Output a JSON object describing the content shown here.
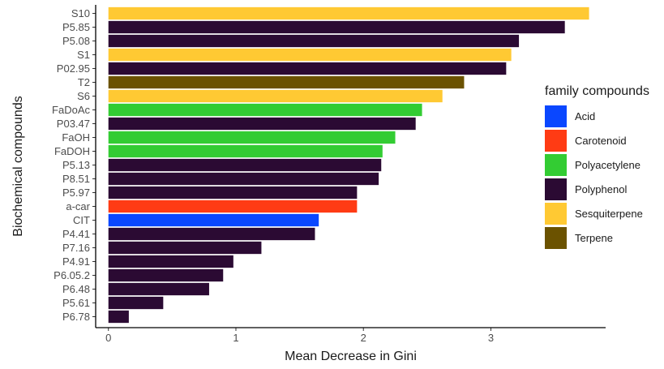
{
  "chart_data": {
    "type": "bar",
    "orientation": "horizontal",
    "xlabel": "Mean Decrease in Gini",
    "ylabel": "Biochemical compounds",
    "xlim": [
      -0.1,
      3.9
    ],
    "xticks": [
      0,
      1,
      2,
      3
    ],
    "grid": false,
    "legend": {
      "title": "family compounds",
      "placement": "right",
      "entries": [
        {
          "name": "Acid",
          "color": "#0a47ff"
        },
        {
          "name": "Carotenoid",
          "color": "#ff3b14"
        },
        {
          "name": "Polyacetylene",
          "color": "#33cc33"
        },
        {
          "name": "Polyphenol",
          "color": "#2b0a33"
        },
        {
          "name": "Sesquiterpene",
          "color": "#ffc933"
        },
        {
          "name": "Terpene",
          "color": "#6b5200"
        }
      ]
    },
    "bars": [
      {
        "label": "S10",
        "value": 3.77,
        "family": "Sesquiterpene"
      },
      {
        "label": "P5.85",
        "value": 3.58,
        "family": "Polyphenol"
      },
      {
        "label": "P5.08",
        "value": 3.22,
        "family": "Polyphenol"
      },
      {
        "label": "S1",
        "value": 3.16,
        "family": "Sesquiterpene"
      },
      {
        "label": "P02.95",
        "value": 3.12,
        "family": "Polyphenol"
      },
      {
        "label": "T2",
        "value": 2.79,
        "family": "Terpene"
      },
      {
        "label": "S6",
        "value": 2.62,
        "family": "Sesquiterpene"
      },
      {
        "label": "FaDoAc",
        "value": 2.46,
        "family": "Polyacetylene"
      },
      {
        "label": "P03.47",
        "value": 2.41,
        "family": "Polyphenol"
      },
      {
        "label": "FaOH",
        "value": 2.25,
        "family": "Polyacetylene"
      },
      {
        "label": "FaDOH",
        "value": 2.15,
        "family": "Polyacetylene"
      },
      {
        "label": "P5.13",
        "value": 2.14,
        "family": "Polyphenol"
      },
      {
        "label": "P8.51",
        "value": 2.12,
        "family": "Polyphenol"
      },
      {
        "label": "P5.97",
        "value": 1.95,
        "family": "Polyphenol"
      },
      {
        "label": "a-car",
        "value": 1.95,
        "family": "Carotenoid"
      },
      {
        "label": "CIT",
        "value": 1.65,
        "family": "Acid"
      },
      {
        "label": "P4.41",
        "value": 1.62,
        "family": "Polyphenol"
      },
      {
        "label": "P7.16",
        "value": 1.2,
        "family": "Polyphenol"
      },
      {
        "label": "P4.91",
        "value": 0.98,
        "family": "Polyphenol"
      },
      {
        "label": "P6.05.2",
        "value": 0.9,
        "family": "Polyphenol"
      },
      {
        "label": "P6.48",
        "value": 0.79,
        "family": "Polyphenol"
      },
      {
        "label": "P5.61",
        "value": 0.43,
        "family": "Polyphenol"
      },
      {
        "label": "P6.78",
        "value": 0.16,
        "family": "Polyphenol"
      }
    ]
  }
}
